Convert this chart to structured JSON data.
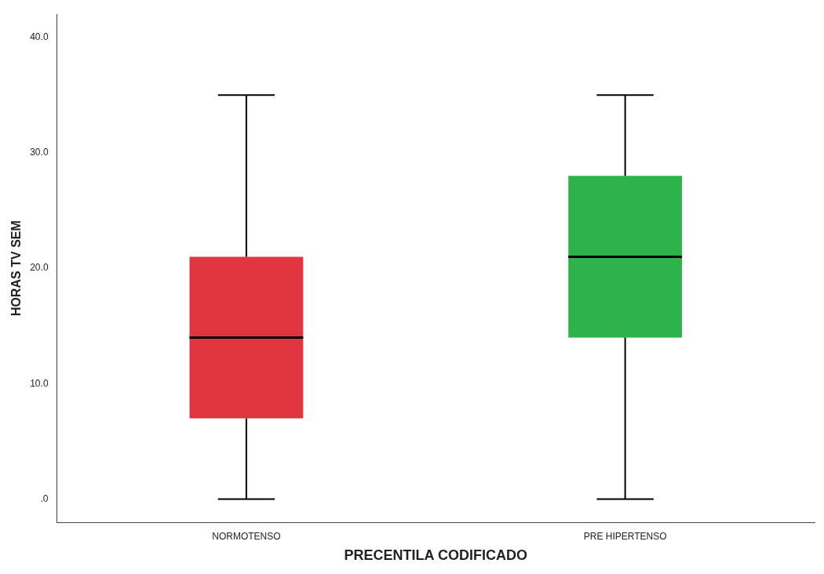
{
  "chart_data": {
    "type": "box",
    "xlabel": "PRECENTILA CODIFICADO",
    "ylabel": "HORAS TV SEM",
    "categories": [
      "NORMOTENSO",
      "PRE HIPERTENSO"
    ],
    "boxes": [
      {
        "low": 0,
        "q1": 7,
        "median": 14,
        "q3": 21,
        "high": 35
      },
      {
        "low": 0,
        "q1": 14,
        "median": 21,
        "q3": 28,
        "high": 35
      }
    ],
    "colors": [
      "#e0343f",
      "#2eb24a"
    ],
    "ylim": [
      -2,
      42
    ],
    "yticks": [
      {
        "value": 0,
        "label": ".0"
      },
      {
        "value": 10,
        "label": "10.0"
      },
      {
        "value": 20,
        "label": "20.0"
      },
      {
        "value": 30,
        "label": "30.0"
      },
      {
        "value": 40,
        "label": "40.0"
      }
    ],
    "grid": false,
    "legend": false
  }
}
